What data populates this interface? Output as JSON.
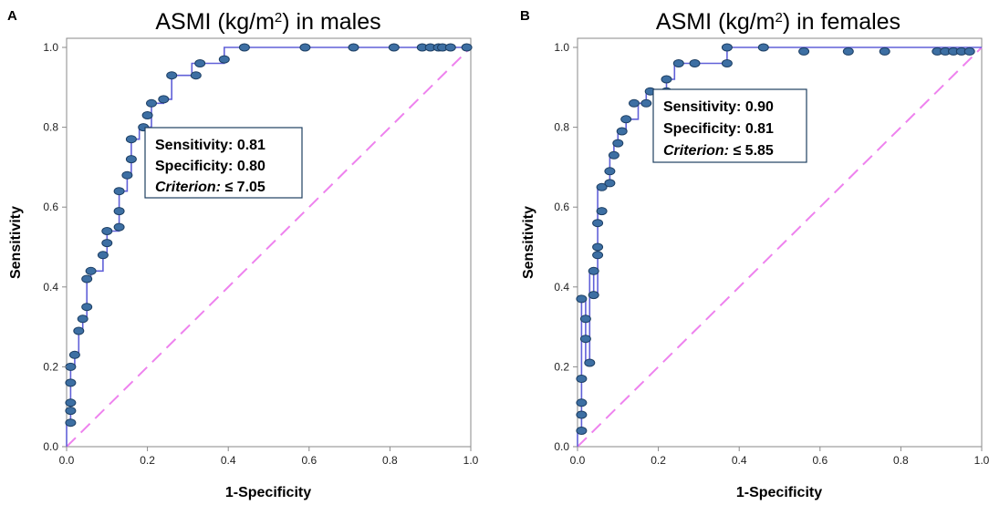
{
  "chart_data": [
    {
      "type": "line",
      "panel": "A",
      "title_main": "ASMI (kg/m",
      "title_sup": "2",
      "title_rest": ") in males",
      "xlabel": "1-Specificity",
      "ylabel": "Sensitivity",
      "xlim": [
        0,
        1
      ],
      "ylim": [
        0,
        1
      ],
      "ticks": [
        "0.0",
        "0.2",
        "0.4",
        "0.6",
        "0.8",
        "1.0"
      ],
      "stats": {
        "sensitivity_label": "Sensitivity:",
        "sensitivity_value": "0.81",
        "specificity_label": "Specificity:",
        "specificity_value": "0.80",
        "criterion_label": "Criterion:",
        "criterion_value": "≤ 7.05"
      },
      "curve": [
        [
          0,
          0
        ],
        [
          0,
          0.06
        ],
        [
          0.01,
          0.06
        ],
        [
          0.01,
          0.09
        ],
        [
          0.01,
          0.11
        ],
        [
          0.01,
          0.16
        ],
        [
          0.01,
          0.2
        ],
        [
          0.02,
          0.2
        ],
        [
          0.02,
          0.23
        ],
        [
          0.03,
          0.23
        ],
        [
          0.03,
          0.29
        ],
        [
          0.04,
          0.29
        ],
        [
          0.04,
          0.32
        ],
        [
          0.05,
          0.32
        ],
        [
          0.05,
          0.35
        ],
        [
          0.05,
          0.42
        ],
        [
          0.06,
          0.42
        ],
        [
          0.06,
          0.44
        ],
        [
          0.09,
          0.44
        ],
        [
          0.09,
          0.48
        ],
        [
          0.1,
          0.48
        ],
        [
          0.1,
          0.51
        ],
        [
          0.1,
          0.54
        ],
        [
          0.13,
          0.54
        ],
        [
          0.13,
          0.59
        ],
        [
          0.13,
          0.64
        ],
        [
          0.15,
          0.64
        ],
        [
          0.15,
          0.68
        ],
        [
          0.16,
          0.68
        ],
        [
          0.16,
          0.72
        ],
        [
          0.16,
          0.77
        ],
        [
          0.18,
          0.77
        ],
        [
          0.18,
          0.8
        ],
        [
          0.21,
          0.8
        ],
        [
          0.21,
          0.83
        ],
        [
          0.21,
          0.86
        ],
        [
          0.24,
          0.86
        ],
        [
          0.24,
          0.87
        ],
        [
          0.26,
          0.87
        ],
        [
          0.26,
          0.93
        ],
        [
          0.31,
          0.93
        ],
        [
          0.31,
          0.96
        ],
        [
          0.39,
          0.96
        ],
        [
          0.39,
          0.97
        ],
        [
          0.39,
          1.0
        ],
        [
          1,
          1
        ]
      ],
      "points": [
        [
          0.01,
          0.06
        ],
        [
          0.01,
          0.09
        ],
        [
          0.01,
          0.11
        ],
        [
          0.01,
          0.16
        ],
        [
          0.01,
          0.2
        ],
        [
          0.02,
          0.23
        ],
        [
          0.03,
          0.29
        ],
        [
          0.04,
          0.32
        ],
        [
          0.05,
          0.35
        ],
        [
          0.05,
          0.42
        ],
        [
          0.06,
          0.44
        ],
        [
          0.09,
          0.48
        ],
        [
          0.1,
          0.51
        ],
        [
          0.1,
          0.54
        ],
        [
          0.13,
          0.55
        ],
        [
          0.13,
          0.59
        ],
        [
          0.13,
          0.64
        ],
        [
          0.15,
          0.68
        ],
        [
          0.16,
          0.72
        ],
        [
          0.16,
          0.77
        ],
        [
          0.19,
          0.8
        ],
        [
          0.2,
          0.83
        ],
        [
          0.21,
          0.86
        ],
        [
          0.24,
          0.87
        ],
        [
          0.26,
          0.93
        ],
        [
          0.32,
          0.93
        ],
        [
          0.33,
          0.96
        ],
        [
          0.39,
          0.97
        ],
        [
          0.44,
          1.0
        ],
        [
          0.59,
          1.0
        ],
        [
          0.71,
          1.0
        ],
        [
          0.81,
          1.0
        ],
        [
          0.88,
          1.0
        ],
        [
          0.9,
          1.0
        ],
        [
          0.92,
          1.0
        ],
        [
          0.93,
          1.0
        ],
        [
          0.95,
          1.0
        ],
        [
          0.99,
          1.0
        ]
      ]
    },
    {
      "type": "line",
      "panel": "B",
      "title_main": "ASMI (kg/m",
      "title_sup": "2",
      "title_rest": ") in females",
      "xlabel": "1-Specificity",
      "ylabel": "Sensitivity",
      "xlim": [
        0,
        1
      ],
      "ylim": [
        0,
        1
      ],
      "ticks": [
        "0.0",
        "0.2",
        "0.4",
        "0.6",
        "0.8",
        "1.0"
      ],
      "stats": {
        "sensitivity_label": "Sensitivity:",
        "sensitivity_value": "0.90",
        "specificity_label": "Specificity:",
        "specificity_value": "0.81",
        "criterion_label": "Criterion:",
        "criterion_value": "≤ 5.85"
      },
      "curve": [
        [
          0,
          0
        ],
        [
          0,
          0.04
        ],
        [
          0.01,
          0.04
        ],
        [
          0.01,
          0.08
        ],
        [
          0.01,
          0.11
        ],
        [
          0.01,
          0.17
        ],
        [
          0.01,
          0.37
        ],
        [
          0.02,
          0.37
        ],
        [
          0.02,
          0.32
        ],
        [
          0.02,
          0.27
        ],
        [
          0.02,
          0.21
        ],
        [
          0.03,
          0.21
        ],
        [
          0.03,
          0.44
        ],
        [
          0.04,
          0.44
        ],
        [
          0.04,
          0.38
        ],
        [
          0.05,
          0.38
        ],
        [
          0.05,
          0.48
        ],
        [
          0.05,
          0.5
        ],
        [
          0.05,
          0.56
        ],
        [
          0.05,
          0.59
        ],
        [
          0.05,
          0.65
        ],
        [
          0.07,
          0.65
        ],
        [
          0.07,
          0.66
        ],
        [
          0.08,
          0.66
        ],
        [
          0.08,
          0.69
        ],
        [
          0.08,
          0.73
        ],
        [
          0.09,
          0.73
        ],
        [
          0.09,
          0.76
        ],
        [
          0.1,
          0.76
        ],
        [
          0.1,
          0.79
        ],
        [
          0.12,
          0.79
        ],
        [
          0.12,
          0.82
        ],
        [
          0.15,
          0.82
        ],
        [
          0.15,
          0.86
        ],
        [
          0.17,
          0.86
        ],
        [
          0.17,
          0.89
        ],
        [
          0.22,
          0.89
        ],
        [
          0.22,
          0.92
        ],
        [
          0.24,
          0.92
        ],
        [
          0.24,
          0.96
        ],
        [
          0.37,
          0.96
        ],
        [
          0.37,
          1.0
        ],
        [
          1,
          1
        ]
      ],
      "points": [
        [
          0.01,
          0.04
        ],
        [
          0.01,
          0.08
        ],
        [
          0.01,
          0.11
        ],
        [
          0.01,
          0.17
        ],
        [
          0.01,
          0.37
        ],
        [
          0.02,
          0.32
        ],
        [
          0.02,
          0.27
        ],
        [
          0.03,
          0.21
        ],
        [
          0.04,
          0.44
        ],
        [
          0.04,
          0.38
        ],
        [
          0.05,
          0.48
        ],
        [
          0.05,
          0.5
        ],
        [
          0.05,
          0.56
        ],
        [
          0.06,
          0.59
        ],
        [
          0.06,
          0.65
        ],
        [
          0.08,
          0.66
        ],
        [
          0.08,
          0.69
        ],
        [
          0.09,
          0.73
        ],
        [
          0.1,
          0.76
        ],
        [
          0.11,
          0.79
        ],
        [
          0.12,
          0.82
        ],
        [
          0.14,
          0.86
        ],
        [
          0.17,
          0.86
        ],
        [
          0.18,
          0.89
        ],
        [
          0.22,
          0.89
        ],
        [
          0.22,
          0.92
        ],
        [
          0.25,
          0.96
        ],
        [
          0.29,
          0.96
        ],
        [
          0.37,
          0.96
        ],
        [
          0.37,
          1.0
        ],
        [
          0.46,
          1.0
        ],
        [
          0.56,
          0.99
        ],
        [
          0.67,
          0.99
        ],
        [
          0.76,
          0.99
        ],
        [
          0.89,
          0.99
        ],
        [
          0.91,
          0.99
        ],
        [
          0.93,
          0.99
        ],
        [
          0.95,
          0.99
        ],
        [
          0.97,
          0.99
        ]
      ]
    }
  ],
  "colors": {
    "curve": "#6060d8",
    "marker_fill": "#3d6fa3",
    "marker_stroke": "#1c3e63",
    "diagonal": "#ee82ee",
    "axis": "#8a8a8a"
  }
}
